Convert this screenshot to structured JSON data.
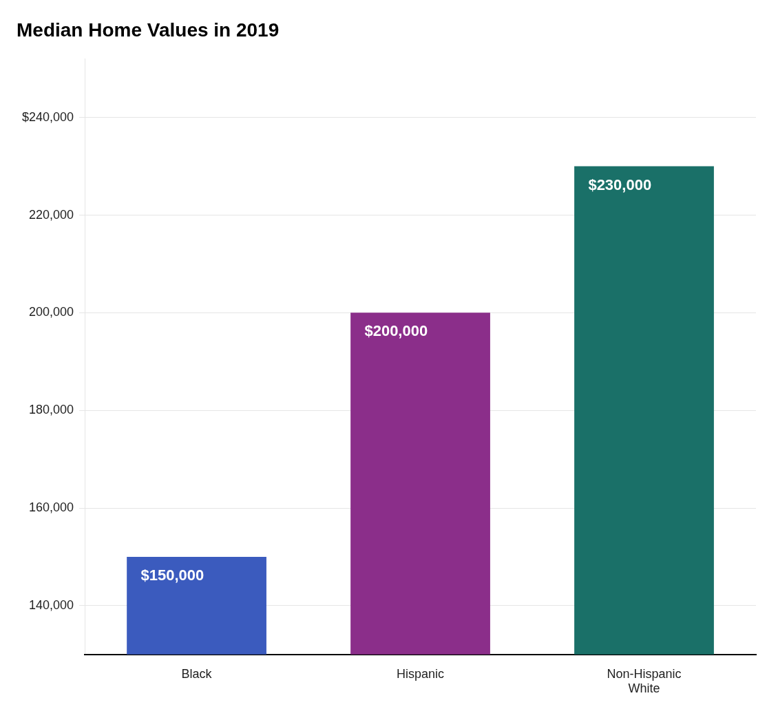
{
  "chart_data": {
    "type": "bar",
    "title": "Median Home Values in 2019",
    "categories": [
      "Black",
      "Hispanic",
      "Non-Hispanic\nWhite"
    ],
    "values": [
      150000,
      200000,
      230000
    ],
    "colors": [
      "#3B5BBE",
      "#8B2E8A",
      "#1A7068"
    ],
    "data_labels": true,
    "value_labels": [
      "$150,000",
      "$200,000",
      "$230,000"
    ],
    "ylim": [
      130000,
      252000
    ],
    "yticks": [
      {
        "value": 140000,
        "label": "140,000"
      },
      {
        "value": 160000,
        "label": "160,000"
      },
      {
        "value": 180000,
        "label": "180,000"
      },
      {
        "value": 200000,
        "label": "200,000"
      },
      {
        "value": 220000,
        "label": "220,000"
      },
      {
        "value": 240000,
        "label": "$240,000"
      }
    ],
    "grid": true
  }
}
